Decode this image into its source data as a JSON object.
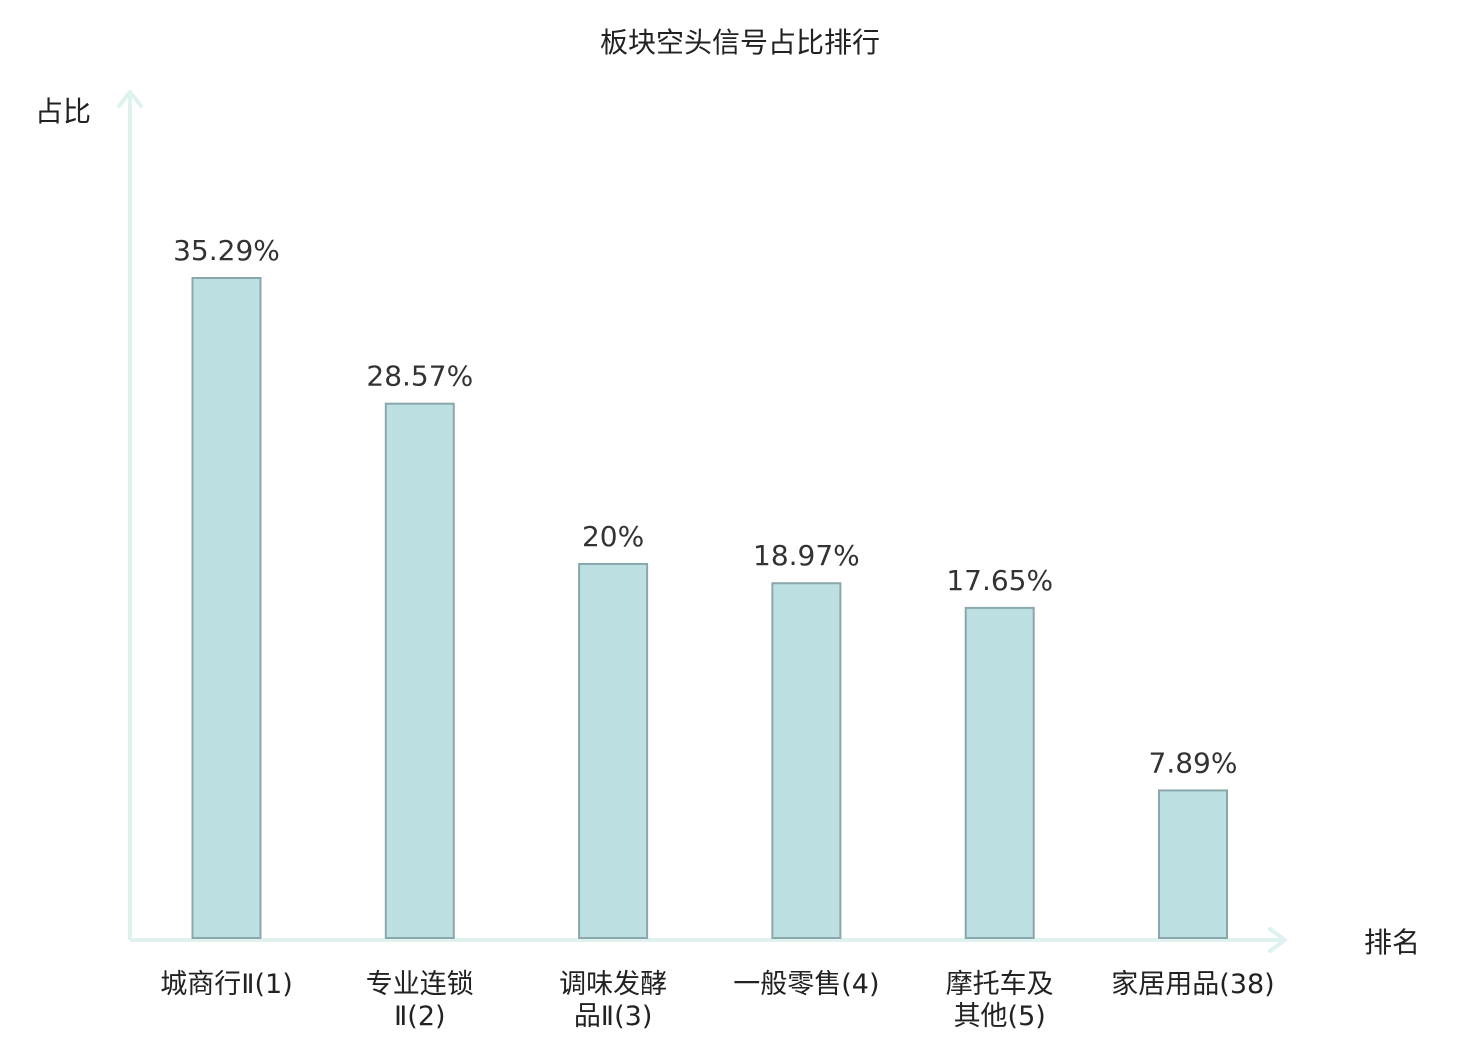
{
  "chart_data": {
    "type": "bar",
    "title": "板块空头信号占比排行",
    "ylabel": "占比",
    "xlabel": "排名",
    "categories": [
      {
        "lines": [
          "城商行Ⅱ(1)"
        ],
        "highlight": false
      },
      {
        "lines": [
          "专业连锁",
          "Ⅱ(2)"
        ],
        "highlight": false
      },
      {
        "lines": [
          "调味发酵",
          "品Ⅱ(3)"
        ],
        "highlight": false
      },
      {
        "lines": [
          "一般零售(4)"
        ],
        "highlight": false
      },
      {
        "lines": [
          "摩托车及",
          "其他(5)"
        ],
        "highlight": false
      },
      {
        "lines": [
          "家居用品(38)"
        ],
        "highlight": true
      }
    ],
    "values": [
      35.29,
      28.57,
      20,
      18.97,
      17.65,
      7.89
    ],
    "value_labels": [
      "35.29%",
      "28.57%",
      "20%",
      "18.97%",
      "17.65%",
      "7.89%"
    ],
    "ylim": [
      0,
      40
    ],
    "grid": false,
    "legend": "none",
    "colors": {
      "bar_fill": "#bde0e3",
      "bar_stroke": "#8aa8ab",
      "axis": "#dff2ef",
      "highlight_text": "#dd1111",
      "text": "#222222"
    }
  }
}
